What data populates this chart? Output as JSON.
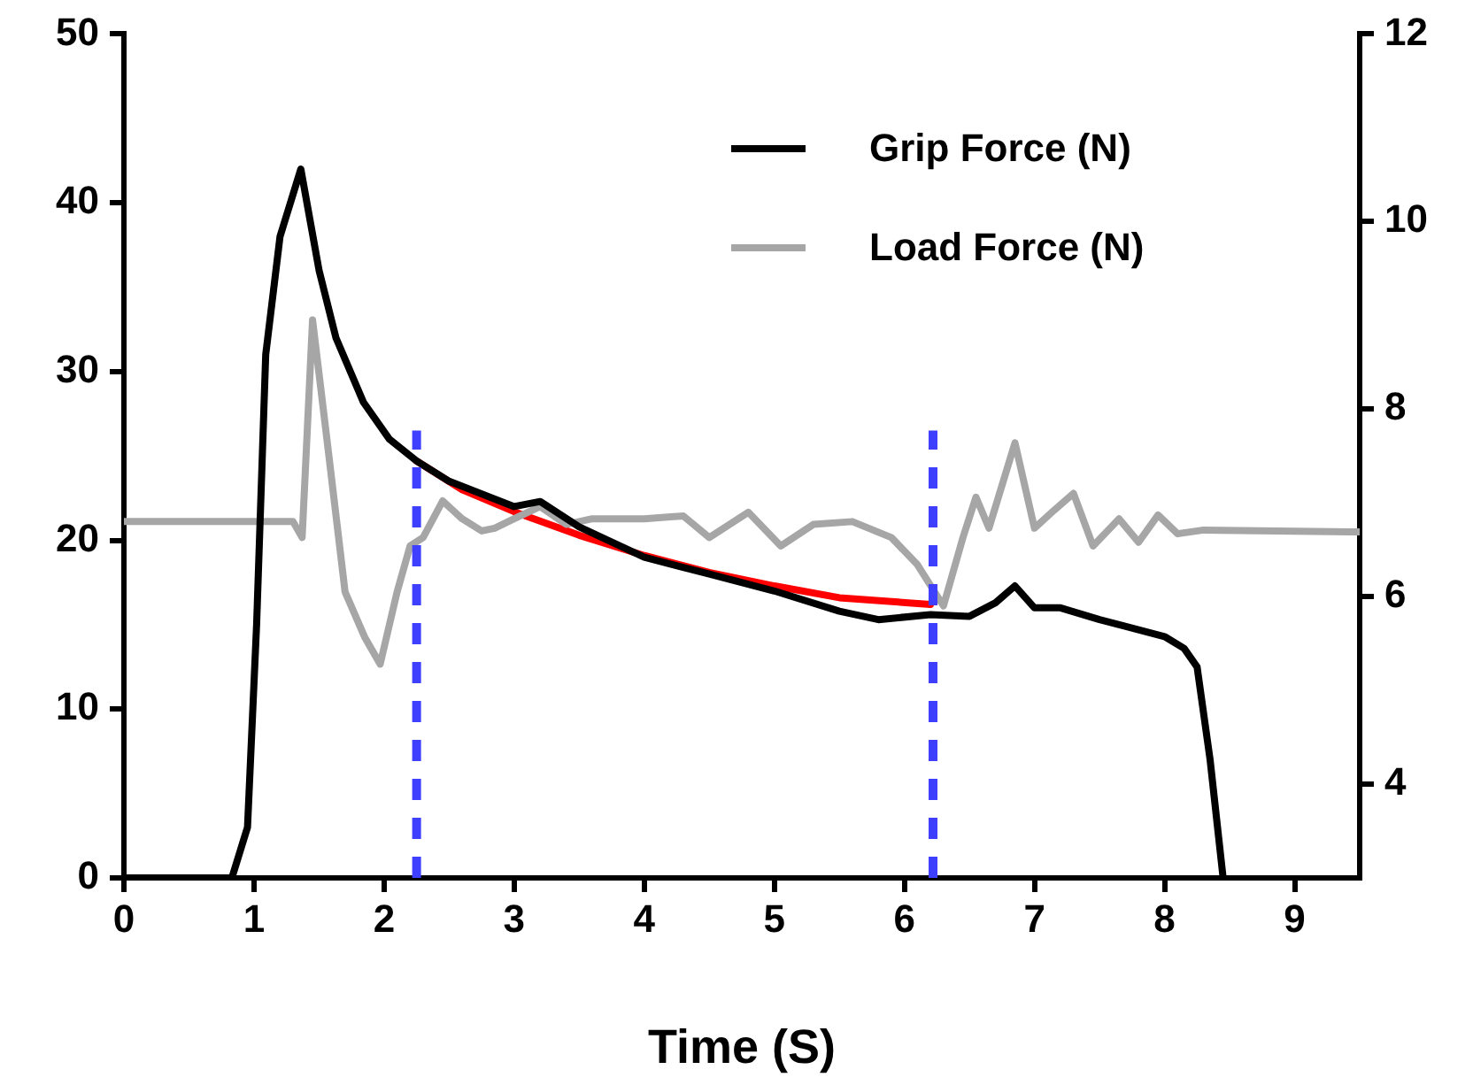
{
  "chart_data": {
    "type": "line",
    "xlabel": "Time (S)",
    "xlim": [
      0,
      9.5
    ],
    "xticks": [
      0,
      1,
      2,
      3,
      4,
      5,
      6,
      7,
      8,
      9
    ],
    "ylim": [
      0,
      50
    ],
    "yticks": [
      0,
      10,
      20,
      30,
      40,
      50
    ],
    "y2lim": [
      3,
      12
    ],
    "y2ticks": [
      4,
      6,
      8,
      10,
      12
    ],
    "grid": false,
    "legend": "top right",
    "marker": "none",
    "series": [
      {
        "name": "Grip Force (N)",
        "color": "#000000",
        "x": [
          0,
          0.83,
          0.95,
          1.02,
          1.09,
          1.2,
          1.36,
          1.5,
          1.63,
          1.84,
          2.04,
          2.25,
          2.5,
          3.0,
          3.2,
          3.5,
          4.0,
          4.5,
          5.0,
          5.5,
          5.8,
          6.2,
          6.5,
          6.7,
          6.85,
          7.0,
          7.2,
          7.5,
          7.8,
          8.0,
          8.15,
          8.25,
          8.35,
          8.45
        ],
        "values": [
          0,
          0,
          3,
          15,
          31,
          38,
          42,
          36,
          32,
          28.2,
          26,
          24.7,
          23.5,
          22,
          22.3,
          20.8,
          19,
          18,
          17,
          15.8,
          15.3,
          15.6,
          15.5,
          16.3,
          17.3,
          16,
          16,
          15.3,
          14.7,
          14.3,
          13.6,
          12.5,
          7,
          0
        ]
      },
      {
        "name": "Load Force (N)",
        "color": "#a6a6a6",
        "axis": "y2",
        "x": [
          0,
          1.3,
          1.37,
          1.45,
          1.55,
          1.7,
          1.85,
          1.97,
          2.1,
          2.2,
          2.3,
          2.45,
          2.6,
          2.75,
          2.85,
          3.0,
          3.2,
          3.4,
          3.6,
          4.0,
          4.3,
          4.5,
          4.8,
          5.05,
          5.3,
          5.6,
          5.9,
          6.1,
          6.3,
          6.45,
          6.55,
          6.65,
          6.85,
          7.0,
          7.15,
          7.3,
          7.45,
          7.65,
          7.8,
          7.95,
          8.1,
          8.3,
          9.5
        ],
        "values": [
          6.8,
          6.8,
          6.63,
          8.95,
          7.8,
          6.05,
          5.57,
          5.28,
          6.05,
          6.54,
          6.63,
          7.02,
          6.83,
          6.7,
          6.73,
          6.83,
          6.96,
          6.77,
          6.83,
          6.83,
          6.86,
          6.63,
          6.9,
          6.54,
          6.77,
          6.8,
          6.63,
          6.34,
          5.9,
          6.63,
          7.06,
          6.73,
          7.64,
          6.73,
          6.92,
          7.1,
          6.54,
          6.83,
          6.58,
          6.87,
          6.67,
          6.71,
          6.69
        ]
      },
      {
        "type": "line",
        "color": "#ff0000",
        "x": [
          2.25,
          2.6,
          3.0,
          3.5,
          4.0,
          4.5,
          5.0,
          5.5,
          6.2
        ],
        "values": [
          24.7,
          23.0,
          21.7,
          20.3,
          19.1,
          18.1,
          17.3,
          16.6,
          16.2
        ]
      }
    ],
    "ref_lines": [
      {
        "axis": "x",
        "value": 2.25,
        "color": "#3f3fff",
        "line_style": "dashed"
      },
      {
        "axis": "x",
        "value": 6.22,
        "color": "#3f3fff",
        "line_style": "dashed"
      }
    ]
  }
}
